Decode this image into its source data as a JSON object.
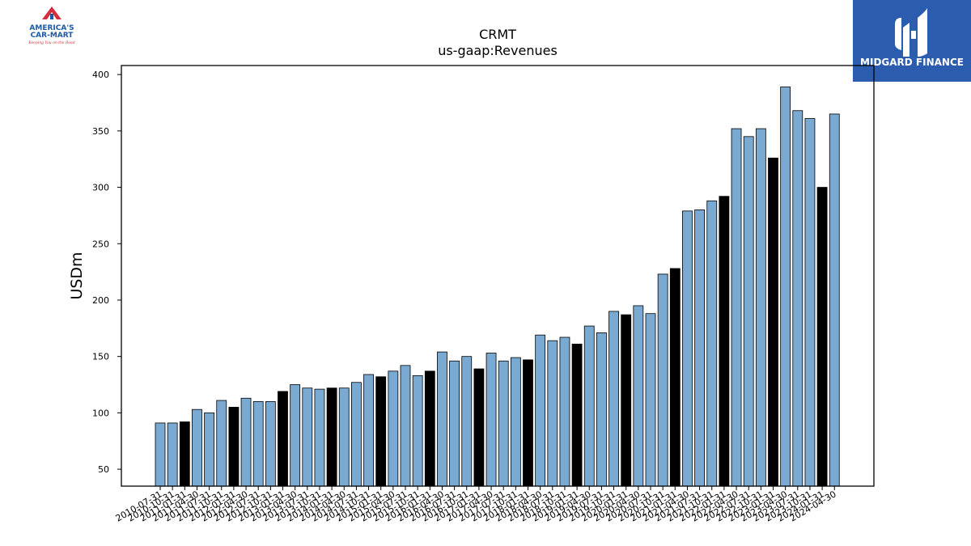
{
  "branding": {
    "left_logo": {
      "line1": "AMERICA'S",
      "line2": "CAR-MART",
      "tagline": "Keeping You on the Road",
      "colors": {
        "red": "#d32f3c",
        "blue": "#1c5aa6"
      }
    },
    "right_logo": {
      "text": "MIDGARD FINANCE",
      "background": "#2b5cad",
      "color": "#ffffff"
    }
  },
  "chart_data": {
    "type": "bar",
    "title": "CRMT",
    "subtitle": "us-gaap:Revenues",
    "xlabel": "",
    "ylabel": "USDm",
    "ylim": [
      35,
      408
    ],
    "yticks": [
      50,
      100,
      150,
      200,
      250,
      300,
      350,
      400
    ],
    "grid": false,
    "colors": {
      "quarter": "#7aaad1",
      "annual": "#000000",
      "edge": "#000000"
    },
    "categories": [
      "2010-07-31",
      "2010-10-31",
      "2011-01-31",
      "2011-04-30",
      "2011-07-31",
      "2011-10-31",
      "2012-01-31",
      "2012-04-30",
      "2012-07-31",
      "2012-10-31",
      "2013-01-31",
      "2013-04-30",
      "2013-07-31",
      "2013-10-31",
      "2014-01-31",
      "2014-04-30",
      "2014-07-31",
      "2014-10-31",
      "2015-01-31",
      "2015-04-30",
      "2015-07-31",
      "2015-10-31",
      "2016-01-31",
      "2016-04-30",
      "2016-07-31",
      "2016-10-31",
      "2017-01-31",
      "2017-04-30",
      "2017-07-31",
      "2017-10-31",
      "2018-01-31",
      "2018-04-30",
      "2018-07-31",
      "2018-10-31",
      "2019-01-31",
      "2019-04-30",
      "2019-07-31",
      "2019-10-31",
      "2020-01-31",
      "2020-04-30",
      "2020-07-31",
      "2020-10-31",
      "2021-01-31",
      "2021-04-30",
      "2021-07-31",
      "2021-10-31",
      "2022-01-31",
      "2022-04-30",
      "2022-07-31",
      "2022-10-31",
      "2023-01-31",
      "2023-04-30",
      "2023-07-31",
      "2023-10-31",
      "2024-01-31",
      "2024-04-30"
    ],
    "values": [
      91,
      91,
      92,
      103,
      100,
      111,
      105,
      113,
      110,
      110,
      119,
      125,
      122,
      121,
      122,
      122,
      127,
      134,
      132,
      137,
      142,
      133,
      137,
      154,
      146,
      150,
      139,
      153,
      146,
      149,
      147,
      169,
      164,
      167,
      161,
      177,
      171,
      190,
      187,
      195,
      188,
      223,
      228,
      279,
      280,
      288,
      292,
      352,
      345,
      352,
      326,
      389,
      368,
      361,
      300,
      365
    ],
    "bar_type": [
      "q",
      "q",
      "a",
      "q",
      "q",
      "q",
      "a",
      "q",
      "q",
      "q",
      "a",
      "q",
      "q",
      "q",
      "a",
      "q",
      "q",
      "q",
      "a",
      "q",
      "q",
      "q",
      "a",
      "q",
      "q",
      "q",
      "a",
      "q",
      "q",
      "q",
      "a",
      "q",
      "q",
      "q",
      "a",
      "q",
      "q",
      "q",
      "a",
      "q",
      "q",
      "q",
      "a",
      "q",
      "q",
      "q",
      "a",
      "q",
      "q",
      "q",
      "a",
      "q",
      "q",
      "q",
      "a",
      "q"
    ]
  }
}
